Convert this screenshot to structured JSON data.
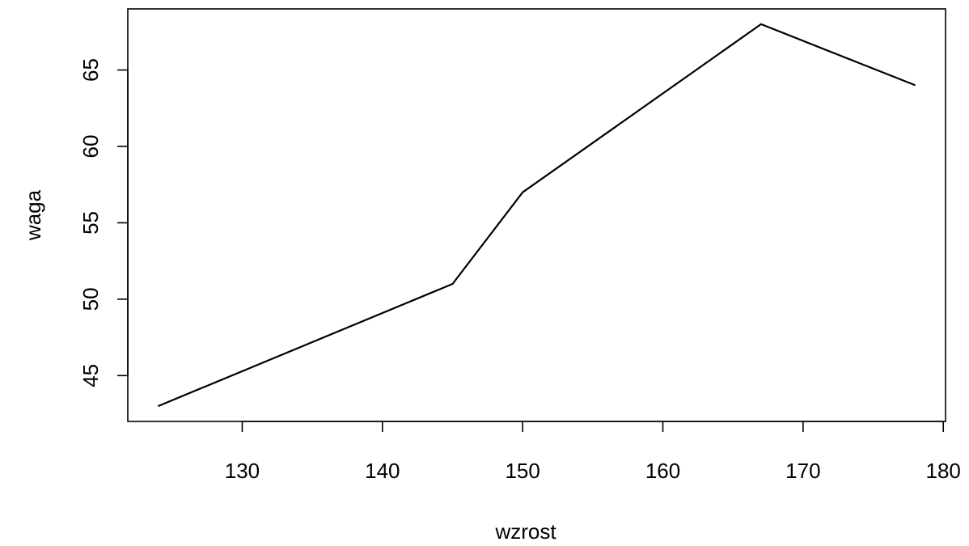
{
  "chart_data": {
    "type": "line",
    "xlabel": "wzrost",
    "ylabel": "waga",
    "xlim": [
      121.84,
      180.16
    ],
    "ylim": [
      42.0,
      69.0
    ],
    "x_ticks": [
      130,
      140,
      150,
      160,
      170,
      180
    ],
    "y_ticks": [
      45,
      50,
      55,
      60,
      65
    ],
    "grid": false,
    "series": [
      {
        "x": [
          124,
          145,
          150,
          167,
          178
        ],
        "y": [
          43,
          51,
          57,
          68,
          64
        ],
        "color": "#000000"
      }
    ]
  }
}
